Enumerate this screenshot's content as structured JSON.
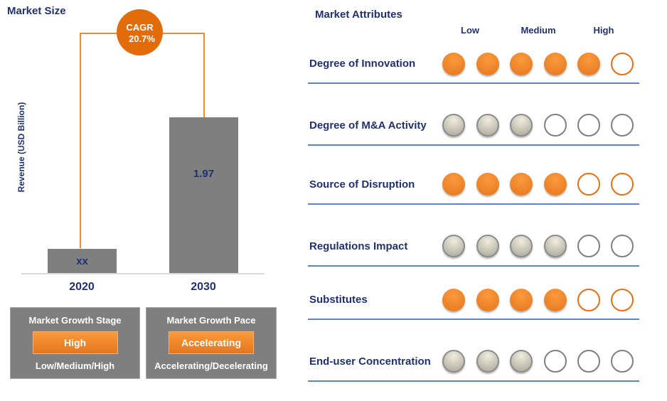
{
  "market_size": {
    "title": "Market Size",
    "cagr_label": "CAGR",
    "cagr_value": "20.7%"
  },
  "chart_data": {
    "type": "bar",
    "title": "Market Size",
    "ylabel": "Revenue (USD Billion)",
    "xlabel": "",
    "categories": [
      "2020",
      "2030"
    ],
    "values": [
      0.31,
      1.97
    ],
    "value_labels": [
      "xx",
      "1.97"
    ],
    "ylim": [
      0,
      1.97
    ],
    "grid": false,
    "annotation": "CAGR 20.7%"
  },
  "growth_stage": {
    "heading": "Market Growth Stage",
    "value": "High",
    "scale": "Low/Medium/High"
  },
  "growth_pace": {
    "heading": "Market Growth Pace",
    "value": "Accelerating",
    "scale": "Accelerating/Decelerating"
  },
  "attributes": {
    "title": "Market Attributes",
    "columns": [
      "Low",
      "Medium",
      "High"
    ],
    "scale_max": 6,
    "colors": {
      "orange": "#e86f10",
      "gray": "#8c8c8c",
      "line": "#5b86c5",
      "navy": "#1f3170"
    },
    "rows": [
      {
        "label": "Degree of Innovation",
        "rating": 5,
        "color": "orange"
      },
      {
        "label": "Degree of M&A Activity",
        "rating": 3,
        "color": "gray"
      },
      {
        "label": "Source of Disruption",
        "rating": 4,
        "color": "orange"
      },
      {
        "label": "Regulations Impact",
        "rating": 4,
        "color": "gray"
      },
      {
        "label": "Substitutes",
        "rating": 4,
        "color": "orange"
      },
      {
        "label": "End-user Concentration",
        "rating": 3,
        "color": "gray"
      }
    ]
  }
}
